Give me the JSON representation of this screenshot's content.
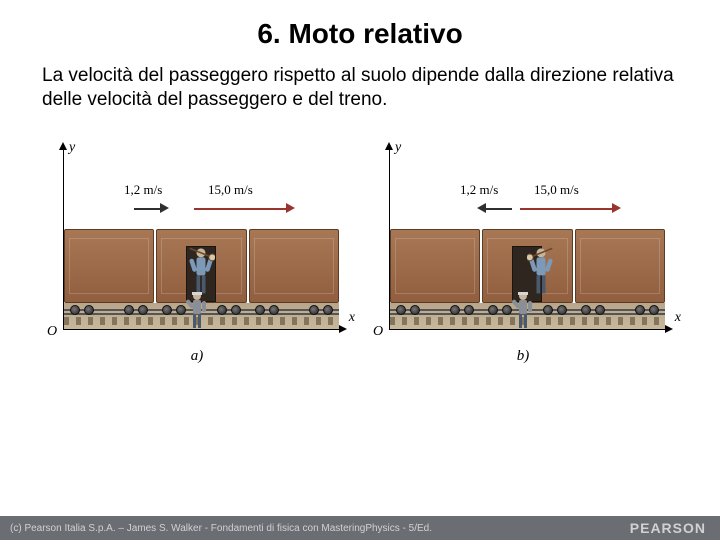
{
  "title": "6. Moto relativo",
  "paragraph": "La velocità del passeggero rispetto al suolo dipende dalla direzione relativa delle velocità del passeggero e del treno.",
  "axis": {
    "y": "y",
    "x": "x",
    "origin": "O"
  },
  "panels": [
    {
      "label": "a)",
      "passenger_vel": {
        "label": "1,2 m/s",
        "dir": "right",
        "color": "#2f2f2f",
        "start": 70,
        "len": 26
      },
      "train_vel": {
        "label": "15,0 m/s",
        "dir": "right",
        "color": "#9a342e",
        "start": 130,
        "len": 92
      }
    },
    {
      "label": "b)",
      "passenger_vel": {
        "label": "1,2 m/s",
        "dir": "left",
        "color": "#2f2f2f",
        "start": 96,
        "len": 26
      },
      "train_vel": {
        "label": "15,0 m/s",
        "dir": "right",
        "color": "#9a342e",
        "start": 130,
        "len": 92
      }
    }
  ],
  "colors": {
    "car": "#a07150",
    "ground": "#c2b18f",
    "footer_bg": "#6a6d72"
  },
  "footer": {
    "credit": "(c) Pearson Italia S.p.A. – James S. Walker - Fondamenti di fisica con MasteringPhysics - 5/Ed.",
    "brand": "PEARSON"
  }
}
